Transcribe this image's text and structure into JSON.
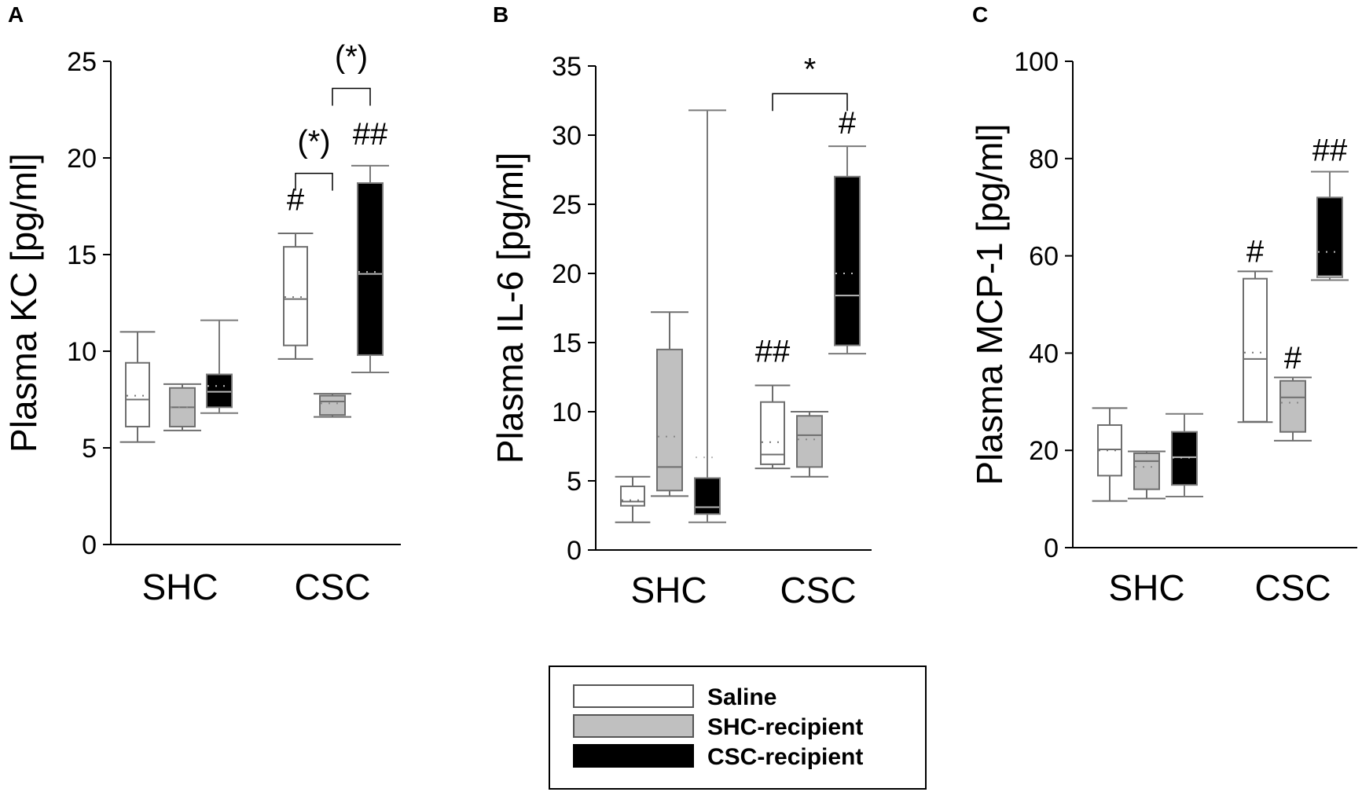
{
  "legend": [
    {
      "label": "Saline",
      "fill": "#ffffff",
      "stroke": "#555555"
    },
    {
      "label": "SHC-recipient",
      "fill": "#c0c0c0",
      "stroke": "#555555"
    },
    {
      "label": "CSC-recipient",
      "fill": "#000000",
      "stroke": "#000000"
    }
  ],
  "chart_data": [
    {
      "type": "box",
      "panel_label": "A",
      "ylabel": "Plasma KC [pg/ml]",
      "ylim": [
        0,
        25
      ],
      "yticks": [
        "0",
        "5",
        "10",
        "15",
        "20",
        "25"
      ],
      "categories": [
        "SHC",
        "CSC"
      ],
      "series_names": [
        "Saline",
        "SHC-recipient",
        "CSC-recipient"
      ],
      "boxes": [
        {
          "category": "SHC",
          "series": "Saline",
          "min": 5.3,
          "q1": 6.1,
          "median": 7.5,
          "q3": 9.4,
          "max": 11.0,
          "mean": 7.7
        },
        {
          "category": "SHC",
          "series": "SHC-recipient",
          "min": 5.9,
          "q1": 6.1,
          "median": 7.1,
          "q3": 8.1,
          "max": 8.3,
          "mean": 7.1
        },
        {
          "category": "SHC",
          "series": "CSC-recipient",
          "min": 6.8,
          "q1": 7.1,
          "median": 7.9,
          "q3": 8.8,
          "max": 11.6,
          "mean": 8.2
        },
        {
          "category": "CSC",
          "series": "Saline",
          "min": 9.6,
          "q1": 10.3,
          "median": 12.7,
          "q3": 15.4,
          "max": 16.1,
          "mean": 12.8
        },
        {
          "category": "CSC",
          "series": "SHC-recipient",
          "min": 6.6,
          "q1": 6.7,
          "median": 7.4,
          "q3": 7.7,
          "max": 7.8,
          "mean": 7.3
        },
        {
          "category": "CSC",
          "series": "CSC-recipient",
          "min": 8.9,
          "q1": 9.8,
          "median": 14.0,
          "q3": 18.7,
          "max": 19.6,
          "mean": 14.1
        }
      ],
      "marks": [
        {
          "text": "#",
          "category": "CSC",
          "series": "Saline",
          "y": 17.3
        },
        {
          "text": "##",
          "category": "CSC",
          "series": "CSC-recipient",
          "y": 20.7
        }
      ],
      "brackets": [
        {
          "text": "(*)",
          "from": {
            "category": "CSC",
            "series": "Saline"
          },
          "to": {
            "category": "CSC",
            "series": "SHC-recipient"
          },
          "y": 19.2,
          "text_y": 20.3
        },
        {
          "text": "(*)",
          "from": {
            "category": "CSC",
            "series": "SHC-recipient"
          },
          "to": {
            "category": "CSC",
            "series": "CSC-recipient"
          },
          "y": 23.6,
          "text_y": 24.7
        }
      ]
    },
    {
      "type": "box",
      "panel_label": "B",
      "ylabel": "Plasma IL-6 [pg/ml]",
      "ylim": [
        0,
        35
      ],
      "yticks": [
        "0",
        "5",
        "10",
        "15",
        "20",
        "25",
        "30",
        "35"
      ],
      "categories": [
        "SHC",
        "CSC"
      ],
      "series_names": [
        "Saline",
        "SHC-recipient",
        "CSC-recipient"
      ],
      "boxes": [
        {
          "category": "SHC",
          "series": "Saline",
          "min": 2.0,
          "q1": 3.2,
          "median": 3.5,
          "q3": 4.6,
          "max": 5.3,
          "mean": 3.6
        },
        {
          "category": "SHC",
          "series": "SHC-recipient",
          "min": 3.9,
          "q1": 4.3,
          "median": 6.0,
          "q3": 14.5,
          "max": 17.2,
          "mean": 8.2
        },
        {
          "category": "SHC",
          "series": "CSC-recipient",
          "min": 2.0,
          "q1": 2.6,
          "median": 3.1,
          "q3": 5.2,
          "max": 31.8,
          "mean": 6.7
        },
        {
          "category": "CSC",
          "series": "Saline",
          "min": 5.9,
          "q1": 6.2,
          "median": 6.9,
          "q3": 10.7,
          "max": 11.9,
          "mean": 7.8
        },
        {
          "category": "CSC",
          "series": "SHC-recipient",
          "min": 5.3,
          "q1": 6.0,
          "median": 8.3,
          "q3": 9.7,
          "max": 10.0,
          "mean": 8.0
        },
        {
          "category": "CSC",
          "series": "CSC-recipient",
          "min": 14.2,
          "q1": 14.8,
          "median": 18.4,
          "q3": 27.0,
          "max": 29.2,
          "mean": 20.0
        }
      ],
      "marks": [
        {
          "text": "##",
          "category": "CSC",
          "series": "Saline",
          "y": 13.6
        },
        {
          "text": "#",
          "category": "CSC",
          "series": "CSC-recipient",
          "y": 30.1
        }
      ],
      "brackets": [
        {
          "text": "*",
          "from": {
            "category": "CSC",
            "series": "Saline"
          },
          "to": {
            "category": "CSC",
            "series": "CSC-recipient"
          },
          "y": 33.0,
          "text_y": 34.0
        }
      ]
    },
    {
      "type": "box",
      "panel_label": "C",
      "ylabel": "Plasma MCP-1 [pg/ml]",
      "ylim": [
        0,
        100
      ],
      "yticks": [
        "0",
        "20",
        "40",
        "60",
        "80",
        "100"
      ],
      "categories": [
        "SHC",
        "CSC"
      ],
      "series_names": [
        "Saline",
        "SHC-recipient",
        "CSC-recipient"
      ],
      "boxes": [
        {
          "category": "SHC",
          "series": "Saline",
          "min": 9.6,
          "q1": 14.8,
          "median": 20.2,
          "q3": 25.2,
          "max": 28.7,
          "mean": 20.0
        },
        {
          "category": "SHC",
          "series": "SHC-recipient",
          "min": 10.1,
          "q1": 12.0,
          "median": 17.8,
          "q3": 19.4,
          "max": 19.8,
          "mean": 16.6
        },
        {
          "category": "SHC",
          "series": "CSC-recipient",
          "min": 10.5,
          "q1": 12.9,
          "median": 18.6,
          "q3": 23.8,
          "max": 27.5,
          "mean": 18.5
        },
        {
          "category": "CSC",
          "series": "Saline",
          "min": 25.8,
          "q1": 25.9,
          "median": 38.8,
          "q3": 55.3,
          "max": 56.8,
          "mean": 40.1
        },
        {
          "category": "CSC",
          "series": "SHC-recipient",
          "min": 22.0,
          "q1": 23.8,
          "median": 30.9,
          "q3": 34.3,
          "max": 35.0,
          "mean": 29.8
        },
        {
          "category": "CSC",
          "series": "CSC-recipient",
          "min": 55.0,
          "q1": 55.6,
          "median": 55.8,
          "q3": 72.0,
          "max": 77.3,
          "mean": 60.8
        }
      ],
      "marks": [
        {
          "text": "#",
          "category": "CSC",
          "series": "Saline",
          "y": 58.7
        },
        {
          "text": "#",
          "category": "CSC",
          "series": "SHC-recipient",
          "y": 36.8
        },
        {
          "text": "##",
          "category": "CSC",
          "series": "CSC-recipient",
          "y": 79.6
        }
      ],
      "brackets": []
    }
  ]
}
